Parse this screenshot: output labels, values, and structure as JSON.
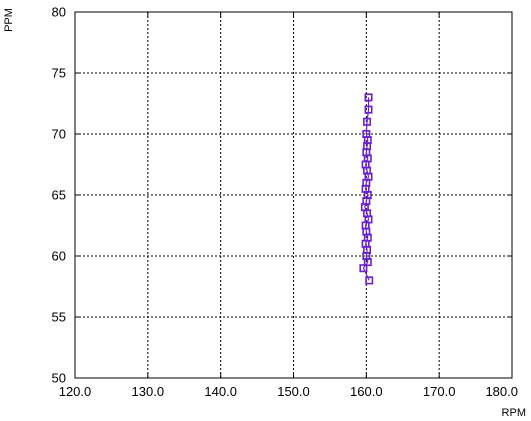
{
  "chart_data": {
    "type": "scatter",
    "title": "",
    "xlabel": "RPM",
    "ylabel": "PPM",
    "xlim": [
      120,
      180
    ],
    "ylim": [
      50,
      80
    ],
    "x_ticks": [
      120,
      130,
      140,
      150,
      160,
      170,
      180
    ],
    "x_tick_labels": [
      "120.0",
      "130.0",
      "140.0",
      "150.0",
      "160.0",
      "170.0",
      "180.0"
    ],
    "y_ticks": [
      50,
      55,
      60,
      65,
      70,
      75,
      80
    ],
    "y_tick_labels": [
      "50",
      "55",
      "60",
      "65",
      "70",
      "75",
      "80"
    ],
    "grid": true,
    "legend": "none",
    "series": [
      {
        "color": "#6a1fd0",
        "marker": "open-square",
        "connected": true,
        "points": [
          [
            160.3,
            73
          ],
          [
            160.3,
            72
          ],
          [
            160.1,
            71
          ],
          [
            160.0,
            70
          ],
          [
            160.2,
            69.5
          ],
          [
            160.1,
            69
          ],
          [
            160.0,
            68.5
          ],
          [
            160.2,
            68
          ],
          [
            159.9,
            67.5
          ],
          [
            160.1,
            67
          ],
          [
            160.3,
            66.5
          ],
          [
            160.0,
            66
          ],
          [
            159.9,
            65.5
          ],
          [
            160.2,
            65
          ],
          [
            160.0,
            64.5
          ],
          [
            159.8,
            64
          ],
          [
            160.1,
            63.5
          ],
          [
            160.3,
            63
          ],
          [
            159.9,
            62.5
          ],
          [
            160.0,
            62
          ],
          [
            160.2,
            61.5
          ],
          [
            159.9,
            61
          ],
          [
            160.1,
            60.5
          ],
          [
            160.0,
            60
          ],
          [
            160.2,
            59.5
          ],
          [
            159.6,
            59
          ],
          [
            160.4,
            58
          ]
        ]
      }
    ]
  }
}
